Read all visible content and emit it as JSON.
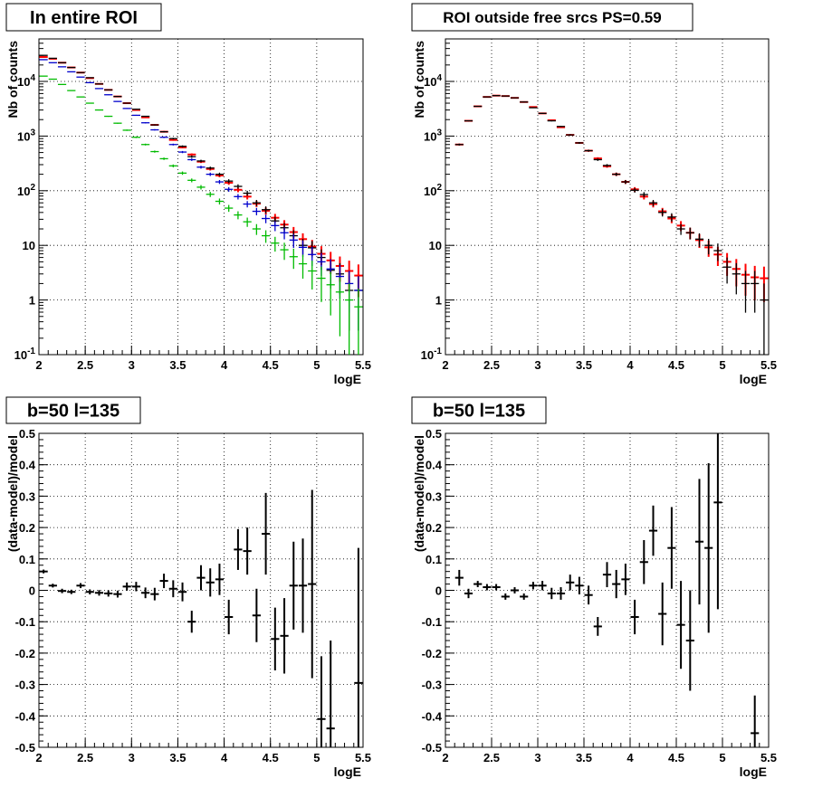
{
  "chart_data": [
    {
      "type": "scatter",
      "title": "In entire ROI",
      "xlabel": "logE",
      "ylabel": "Nb of counts",
      "xlim": [
        2,
        5.5
      ],
      "ylim": [
        0.1,
        60000
      ],
      "log_y": true,
      "grid": true,
      "x_ticks": [
        "2",
        "2.5",
        "3",
        "3.5",
        "4",
        "4.5",
        "5",
        "5.5"
      ],
      "y_ticks": [
        "10^-1",
        "1",
        "10",
        "10^2",
        "10^3",
        "10^4"
      ],
      "series": [
        {
          "color": "#ff0000",
          "x": [
            2.05,
            2.15,
            2.25,
            2.35,
            2.45,
            2.55,
            2.65,
            2.75,
            2.85,
            2.95,
            3.05,
            3.15,
            3.25,
            3.35,
            3.45,
            3.55,
            3.65,
            3.75,
            3.85,
            3.95,
            4.05,
            4.15,
            4.25,
            4.35,
            4.45,
            4.55,
            4.65,
            4.75,
            4.85,
            4.95,
            5.05,
            5.15,
            5.25,
            5.35,
            5.45
          ],
          "y": [
            28000,
            26000,
            22000,
            18000,
            14500,
            11500,
            9000,
            7000,
            5300,
            4000,
            3000,
            2200,
            1600,
            1200,
            850,
            620,
            460,
            340,
            250,
            190,
            140,
            104,
            78,
            58,
            43,
            32,
            24,
            17.5,
            13,
            9.5,
            7,
            5.3,
            4.2,
            3.4,
            2.8
          ]
        },
        {
          "color": "#000000",
          "x": [
            2.05,
            2.15,
            2.25,
            2.35,
            2.45,
            2.55,
            2.65,
            2.75,
            2.85,
            2.95,
            3.05,
            3.15,
            3.25,
            3.35,
            3.45,
            3.55,
            3.65,
            3.75,
            3.85,
            3.95,
            4.05,
            4.15,
            4.25,
            4.35,
            4.45,
            4.55,
            4.65,
            4.75,
            4.85,
            4.95,
            5.05,
            5.15,
            5.25,
            5.35,
            5.45
          ],
          "y": [
            30000,
            26500,
            22000,
            18000,
            14500,
            11700,
            9000,
            7000,
            5300,
            4000,
            3100,
            2300,
            1600,
            1200,
            900,
            650,
            420,
            350,
            260,
            200,
            150,
            120,
            90,
            60,
            45,
            28,
            21,
            15,
            10,
            9,
            6,
            3.5,
            3,
            1.5,
            1.5
          ]
        },
        {
          "color": "#0000cc",
          "x": [
            2.05,
            2.15,
            2.25,
            2.35,
            2.45,
            2.55,
            2.65,
            2.75,
            2.85,
            2.95,
            3.05,
            3.15,
            3.25,
            3.35,
            3.45,
            3.55,
            3.65,
            3.75,
            3.85,
            3.95,
            4.05,
            4.15,
            4.25,
            4.35,
            4.45,
            4.55,
            4.65,
            4.75,
            4.85,
            4.95,
            5.05,
            5.15,
            5.25,
            5.35,
            5.45
          ],
          "y": [
            25000,
            22000,
            18500,
            15000,
            12000,
            9500,
            7400,
            5700,
            4300,
            3200,
            2400,
            1750,
            1300,
            950,
            700,
            510,
            370,
            270,
            200,
            145,
            106,
            78,
            57,
            42,
            31,
            23,
            17,
            12.5,
            9.2,
            6.8,
            5,
            3.7,
            2.7,
            2.0,
            1.5
          ]
        },
        {
          "color": "#00bb00",
          "x": [
            2.05,
            2.15,
            2.25,
            2.35,
            2.45,
            2.55,
            2.65,
            2.75,
            2.85,
            2.95,
            3.05,
            3.15,
            3.25,
            3.35,
            3.45,
            3.55,
            3.65,
            3.75,
            3.85,
            3.95,
            4.05,
            4.15,
            4.25,
            4.35,
            4.45,
            4.55,
            4.65,
            4.75,
            4.85,
            4.95,
            5.05,
            5.15,
            5.25,
            5.35,
            5.45
          ],
          "y": [
            12500,
            11000,
            8800,
            6800,
            5200,
            4000,
            3000,
            2300,
            1720,
            1280,
            950,
            700,
            520,
            385,
            285,
            210,
            155,
            116,
            86,
            64,
            48,
            36,
            27,
            20,
            15,
            11,
            8.3,
            6.2,
            4.6,
            3.4,
            2.5,
            1.9,
            1.4,
            1.0,
            0.75
          ]
        }
      ]
    },
    {
      "type": "scatter",
      "title": "ROI outside free srcs PS=0.59",
      "xlabel": "logE",
      "ylabel": "Nb of counts",
      "xlim": [
        2,
        5.5
      ],
      "ylim": [
        0.1,
        60000
      ],
      "log_y": true,
      "grid": true,
      "x_ticks": [
        "2",
        "2.5",
        "3",
        "3.5",
        "4",
        "4.5",
        "5",
        "5.5"
      ],
      "y_ticks": [
        "10^-1",
        "1",
        "10",
        "10^2",
        "10^3",
        "10^4"
      ],
      "series": [
        {
          "color": "#ff0000",
          "x": [
            2.15,
            2.25,
            2.35,
            2.45,
            2.55,
            2.65,
            2.75,
            2.85,
            2.95,
            3.05,
            3.15,
            3.25,
            3.35,
            3.45,
            3.55,
            3.65,
            3.75,
            3.85,
            3.95,
            4.05,
            4.15,
            4.25,
            4.35,
            4.45,
            4.55,
            4.65,
            4.75,
            4.85,
            4.95,
            5.05,
            5.15,
            5.25,
            5.35,
            5.45
          ],
          "y": [
            700,
            1900,
            3500,
            5200,
            5500,
            5400,
            5000,
            4200,
            3400,
            2600,
            1950,
            1450,
            1050,
            750,
            540,
            390,
            280,
            200,
            145,
            106,
            78,
            57,
            42,
            31,
            23,
            17,
            12.5,
            9.2,
            6.8,
            5,
            3.7,
            2.9,
            2.6,
            2.5
          ]
        },
        {
          "color": "#000000",
          "x": [
            2.15,
            2.25,
            2.35,
            2.45,
            2.55,
            2.65,
            2.75,
            2.85,
            2.95,
            3.05,
            3.15,
            3.25,
            3.35,
            3.45,
            3.55,
            3.65,
            3.75,
            3.85,
            3.95,
            4.05,
            4.15,
            4.25,
            4.35,
            4.45,
            4.55,
            4.65,
            4.75,
            4.85,
            4.95,
            5.05,
            5.15,
            5.25,
            5.35,
            5.45
          ],
          "y": [
            700,
            1900,
            3500,
            5200,
            5500,
            5400,
            5000,
            4200,
            3300,
            2600,
            1900,
            1500,
            1050,
            750,
            540,
            370,
            290,
            200,
            145,
            102,
            85,
            60,
            40,
            33,
            20,
            17,
            13,
            10,
            8,
            4,
            3,
            2,
            2,
            1
          ]
        }
      ]
    },
    {
      "type": "scatter",
      "title": "b=50 l=135",
      "xlabel": "logE",
      "ylabel": "(data-model)/model",
      "xlim": [
        2,
        5.5
      ],
      "ylim": [
        -0.5,
        0.5
      ],
      "grid": true,
      "x_ticks": [
        "2",
        "2.5",
        "3",
        "3.5",
        "4",
        "4.5",
        "5",
        "5.5"
      ],
      "y_ticks": [
        "-0.5",
        "-0.4",
        "-0.3",
        "-0.2",
        "-0.1",
        "0",
        "0.1",
        "0.2",
        "0.3",
        "0.4",
        "0.5"
      ],
      "series": [
        {
          "color": "#000000",
          "x": [
            2.05,
            2.15,
            2.25,
            2.35,
            2.45,
            2.55,
            2.65,
            2.75,
            2.85,
            2.95,
            3.05,
            3.15,
            3.25,
            3.35,
            3.45,
            3.55,
            3.65,
            3.75,
            3.85,
            3.95,
            4.05,
            4.15,
            4.25,
            4.35,
            4.45,
            4.55,
            4.65,
            4.75,
            4.85,
            4.95,
            5.05,
            5.15,
            5.45
          ],
          "y": [
            0.06,
            0.015,
            -0.002,
            -0.005,
            0.015,
            -0.005,
            -0.008,
            -0.01,
            -0.012,
            0.012,
            0.012,
            -0.008,
            -0.012,
            0.03,
            0.005,
            -0.005,
            -0.1,
            0.04,
            0.025,
            0.035,
            -0.085,
            0.13,
            0.125,
            -0.08,
            0.18,
            -0.155,
            -0.145,
            0.015,
            0.015,
            0.02,
            -0.41,
            -0.44,
            -0.295
          ],
          "err": [
            0.006,
            0.006,
            0.007,
            0.007,
            0.008,
            0.008,
            0.009,
            0.01,
            0.011,
            0.013,
            0.015,
            0.017,
            0.02,
            0.023,
            0.027,
            0.03,
            0.035,
            0.04,
            0.045,
            0.05,
            0.055,
            0.065,
            0.075,
            0.085,
            0.13,
            0.1,
            0.12,
            0.14,
            0.15,
            0.3,
            0.2,
            0.28,
            0.43
          ]
        }
      ]
    },
    {
      "type": "scatter",
      "title": "b=50 l=135",
      "xlabel": "logE",
      "ylabel": "(data-model)/model",
      "xlim": [
        2,
        5.5
      ],
      "ylim": [
        -0.5,
        0.5
      ],
      "grid": true,
      "x_ticks": [
        "2",
        "2.5",
        "3",
        "3.5",
        "4",
        "4.5",
        "5",
        "5.5"
      ],
      "y_ticks": [
        "-0.5",
        "-0.4",
        "-0.3",
        "-0.2",
        "-0.1",
        "0",
        "0.1",
        "0.2",
        "0.3",
        "0.4",
        "0.5"
      ],
      "series": [
        {
          "color": "#000000",
          "x": [
            2.15,
            2.25,
            2.35,
            2.45,
            2.55,
            2.65,
            2.75,
            2.85,
            2.95,
            3.05,
            3.15,
            3.25,
            3.35,
            3.45,
            3.55,
            3.65,
            3.75,
            3.85,
            3.95,
            4.05,
            4.15,
            4.25,
            4.35,
            4.45,
            4.55,
            4.65,
            4.75,
            4.85,
            4.95,
            5.35
          ],
          "y": [
            0.04,
            -0.01,
            0.02,
            0.01,
            0.01,
            -0.02,
            0.0,
            -0.02,
            0.015,
            0.015,
            -0.01,
            -0.01,
            0.025,
            0.015,
            -0.015,
            -0.115,
            0.05,
            0.02,
            0.035,
            -0.085,
            0.09,
            0.19,
            -0.075,
            0.135,
            -0.11,
            -0.16,
            0.155,
            0.135,
            0.28,
            -0.455
          ],
          "err": [
            0.025,
            0.015,
            0.01,
            0.01,
            0.01,
            0.01,
            0.01,
            0.01,
            0.012,
            0.015,
            0.018,
            0.02,
            0.025,
            0.028,
            0.03,
            0.03,
            0.04,
            0.045,
            0.05,
            0.055,
            0.07,
            0.08,
            0.1,
            0.13,
            0.14,
            0.16,
            0.2,
            0.27,
            0.34,
            0.12
          ]
        }
      ]
    }
  ]
}
